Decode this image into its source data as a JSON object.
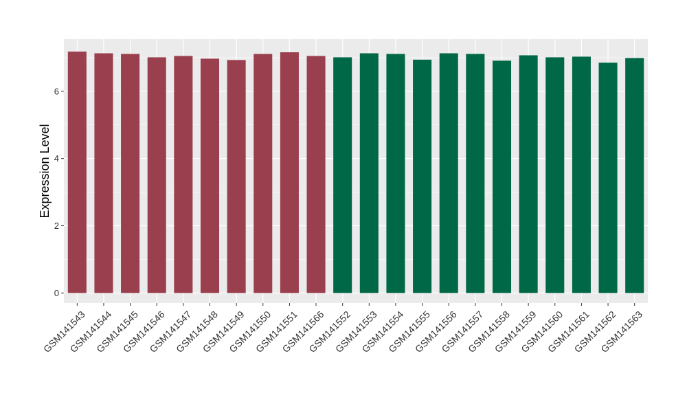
{
  "chart_data": {
    "type": "bar",
    "title": "",
    "xlabel": "",
    "ylabel": "Expression Level",
    "ylim": [
      -0.3,
      7.55
    ],
    "yticks": [
      0,
      2,
      4,
      6
    ],
    "ytick_labels": [
      "0",
      "2",
      "4",
      "6"
    ],
    "grid": true,
    "legend": "none",
    "categories": [
      "GSM141543",
      "GSM141544",
      "GSM141545",
      "GSM141546",
      "GSM141547",
      "GSM141548",
      "GSM141549",
      "GSM141550",
      "GSM141551",
      "GSM141566",
      "GSM141552",
      "GSM141553",
      "GSM141554",
      "GSM141555",
      "GSM141556",
      "GSM141557",
      "GSM141558",
      "GSM141559",
      "GSM141560",
      "GSM141561",
      "GSM141562",
      "GSM141563"
    ],
    "values": [
      7.18,
      7.13,
      7.11,
      7.01,
      7.05,
      6.97,
      6.93,
      7.11,
      7.16,
      7.05,
      7.01,
      7.13,
      7.11,
      6.94,
      7.13,
      7.11,
      6.91,
      7.07,
      7.01,
      7.03,
      6.85,
      6.99
    ],
    "groups": [
      1,
      1,
      1,
      1,
      1,
      1,
      1,
      1,
      1,
      1,
      2,
      2,
      2,
      2,
      2,
      2,
      2,
      2,
      2,
      2,
      2,
      2
    ],
    "colors": {
      "group1": "#9a3f4d",
      "group2": "#006846",
      "panel_bg": "#ebebeb",
      "grid": "#ffffff",
      "tick_text": "#333333",
      "axis_title": "#000000"
    }
  }
}
